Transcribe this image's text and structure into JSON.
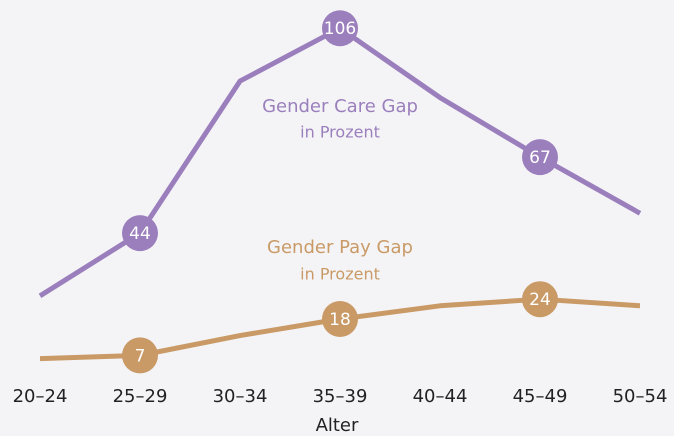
{
  "chart_data": {
    "type": "line",
    "categories": [
      "20–24",
      "25–29",
      "30–34",
      "35–39",
      "40–44",
      "45–49",
      "50–54"
    ],
    "x_label": "Alter",
    "series": [
      {
        "name": "Gender Care Gap",
        "unit": "in Prozent",
        "color": "#9b7fbd",
        "values": [
          25,
          44,
          90,
          106,
          85,
          67,
          50
        ],
        "labeled": [
          1,
          3,
          5
        ]
      },
      {
        "name": "Gender Pay Gap",
        "unit": "in Prozent",
        "color": "#c99a66",
        "values": [
          6,
          7,
          13,
          18,
          22,
          24,
          22
        ],
        "labeled": [
          1,
          3,
          5
        ]
      }
    ],
    "ylim": [
      0,
      110
    ],
    "grid": false
  }
}
